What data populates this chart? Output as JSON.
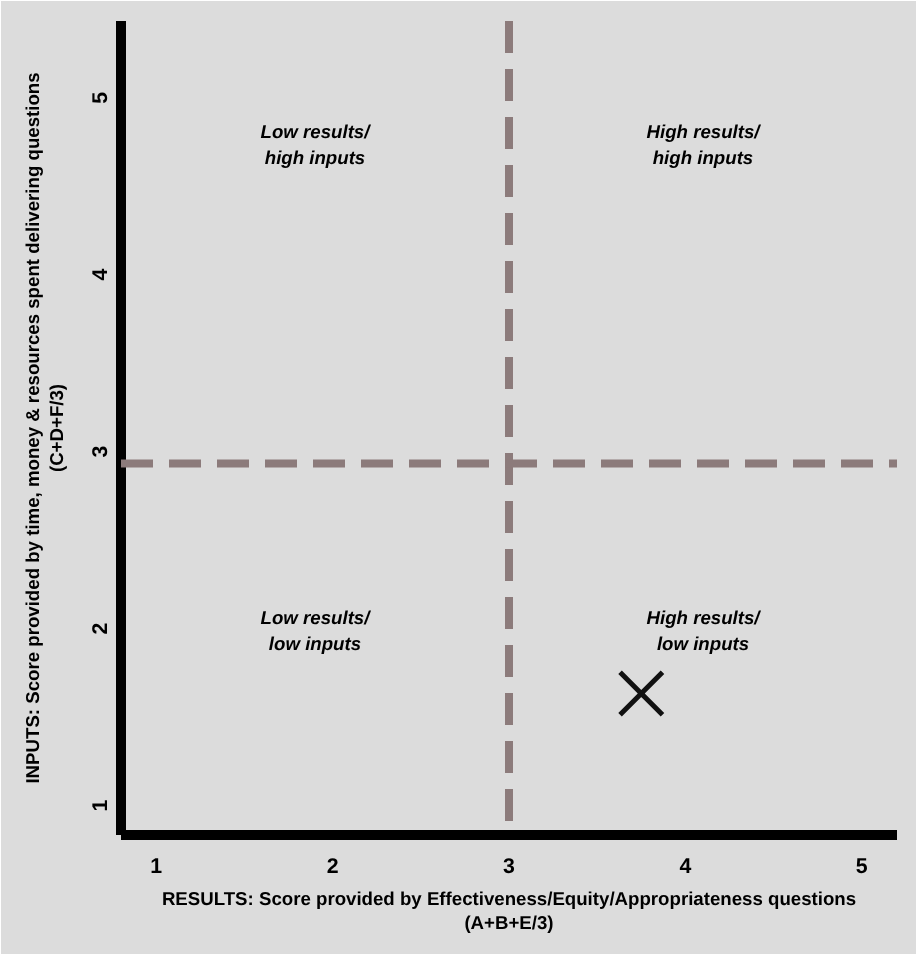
{
  "chart_data": {
    "type": "scatter",
    "xlabel": "RESULTS: Score provided by Effectiveness/Equity/Appropriateness questions\n(A+B+E/3)",
    "ylabel": "INPUTS: Score provided by time, money & resources spent delivering questions\n(C+D+F/3)",
    "x": [
      3.75
    ],
    "values": [
      1.6
    ],
    "color": "#111111",
    "marker": "cross",
    "xlim": [
      0.8,
      5.2
    ],
    "ylim": [
      0.8,
      5.4
    ],
    "xticks": [
      1,
      2,
      3,
      4,
      5
    ],
    "yticks": [
      1,
      2,
      3,
      4,
      5
    ],
    "grid": false,
    "ref_lines": [
      {
        "axis": "x",
        "value": 3,
        "color": "#8c7b7b",
        "line_style": "dashed"
      },
      {
        "axis": "y",
        "value": 2.9,
        "color": "#8c7b7b",
        "line_style": "dashed"
      }
    ],
    "annotations": [
      "Low results/\nhigh inputs",
      "High results/\nhigh inputs",
      "Low results/\nlow inputs",
      "High results/\nlow inputs"
    ]
  }
}
